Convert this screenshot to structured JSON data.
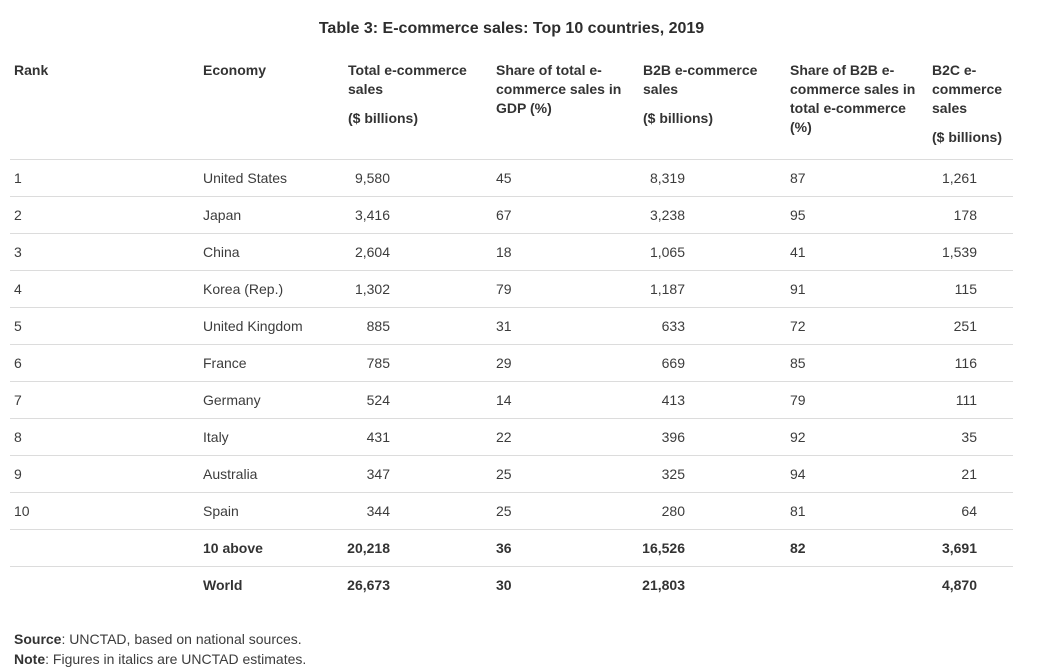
{
  "page": {
    "title": "Table 3: E-commerce sales: Top 10 countries, 2019"
  },
  "table": {
    "columns": [
      {
        "label": "Rank",
        "unit": ""
      },
      {
        "label": "Economy",
        "unit": ""
      },
      {
        "label": "Total e-commerce sales",
        "unit": "($ billions)"
      },
      {
        "label": "Share of total e-commerce sales in GDP (%)",
        "unit": ""
      },
      {
        "label": "B2B e-commerce sales",
        "unit": "($ billions)"
      },
      {
        "label": "Share of B2B e-commerce sales in total e-commerce (%)",
        "unit": ""
      },
      {
        "label": "B2C e-commerce sales",
        "unit": "($ billions)"
      }
    ],
    "rows": [
      {
        "rank": "1",
        "economy": "United States",
        "total": "9,580",
        "gdp_share": "45",
        "b2b": "8,319",
        "b2b_share": "87",
        "b2c": "1,261",
        "bold": false
      },
      {
        "rank": "2",
        "economy": "Japan",
        "total": "3,416",
        "gdp_share": "67",
        "b2b": "3,238",
        "b2b_share": "95",
        "b2c": "178",
        "bold": false
      },
      {
        "rank": "3",
        "economy": "China",
        "total": "2,604",
        "gdp_share": "18",
        "b2b": "1,065",
        "b2b_share": "41",
        "b2c": "1,539",
        "bold": false
      },
      {
        "rank": "4",
        "economy": "Korea (Rep.)",
        "total": "1,302",
        "gdp_share": "79",
        "b2b": "1,187",
        "b2b_share": "91",
        "b2c": "115",
        "bold": false
      },
      {
        "rank": "5",
        "economy": "United Kingdom",
        "total": "885",
        "gdp_share": "31",
        "b2b": "633",
        "b2b_share": "72",
        "b2c": "251",
        "bold": false
      },
      {
        "rank": "6",
        "economy": "France",
        "total": "785",
        "gdp_share": "29",
        "b2b": "669",
        "b2b_share": "85",
        "b2c": "116",
        "bold": false
      },
      {
        "rank": "7",
        "economy": "Germany",
        "total": "524",
        "gdp_share": "14",
        "b2b": "413",
        "b2b_share": "79",
        "b2c": "111",
        "bold": false
      },
      {
        "rank": "8",
        "economy": "Italy",
        "total": "431",
        "gdp_share": "22",
        "b2b": "396",
        "b2b_share": "92",
        "b2c": "35",
        "bold": false
      },
      {
        "rank": "9",
        "economy": "Australia",
        "total": "347",
        "gdp_share": "25",
        "b2b": "325",
        "b2b_share": "94",
        "b2c": "21",
        "bold": false
      },
      {
        "rank": "10",
        "economy": "Spain",
        "total": "344",
        "gdp_share": "25",
        "b2b": "280",
        "b2b_share": "81",
        "b2c": "64",
        "bold": false
      },
      {
        "rank": "",
        "economy": "10 above",
        "total": "20,218",
        "gdp_share": "36",
        "b2b": "16,526",
        "b2b_share": "82",
        "b2c": "3,691",
        "bold": true
      },
      {
        "rank": "",
        "economy": "World",
        "total": "26,673",
        "gdp_share": "30",
        "b2b": "21,803",
        "b2b_share": "",
        "b2c": "4,870",
        "bold": true
      }
    ]
  },
  "footnotes": {
    "source_label": "Source",
    "source_text": ": UNCTAD, based on national sources.",
    "note_label": "Note",
    "note_text": ": Figures in italics are UNCTAD estimates."
  },
  "colors": {
    "background": "#ffffff",
    "text": "#3c3c3c",
    "heading": "#333333",
    "title": "#2d2d2d",
    "rule": "#dcdcdc"
  },
  "chart_data": {
    "type": "table",
    "title": "Table 3: E-commerce sales: Top 10 countries, 2019",
    "columns": [
      "Rank",
      "Economy",
      "Total e-commerce sales ($ billions)",
      "Share of total e-commerce sales in GDP (%)",
      "B2B e-commerce sales ($ billions)",
      "Share of B2B e-commerce sales in total e-commerce (%)",
      "B2C e-commerce sales ($ billions)"
    ],
    "rows": [
      [
        1,
        "United States",
        9580,
        45,
        8319,
        87,
        1261
      ],
      [
        2,
        "Japan",
        3416,
        67,
        3238,
        95,
        178
      ],
      [
        3,
        "China",
        2604,
        18,
        1065,
        41,
        1539
      ],
      [
        4,
        "Korea (Rep.)",
        1302,
        79,
        1187,
        91,
        115
      ],
      [
        5,
        "United Kingdom",
        885,
        31,
        633,
        72,
        251
      ],
      [
        6,
        "France",
        785,
        29,
        669,
        85,
        116
      ],
      [
        7,
        "Germany",
        524,
        14,
        413,
        79,
        111
      ],
      [
        8,
        "Italy",
        431,
        22,
        396,
        92,
        35
      ],
      [
        9,
        "Australia",
        347,
        25,
        325,
        94,
        21
      ],
      [
        10,
        "Spain",
        344,
        25,
        280,
        81,
        64
      ],
      [
        null,
        "10 above",
        20218,
        36,
        16526,
        82,
        3691
      ],
      [
        null,
        "World",
        26673,
        30,
        21803,
        null,
        4870
      ]
    ],
    "source": "UNCTAD, based on national sources.",
    "note": "Figures in italics are UNCTAD estimates."
  }
}
